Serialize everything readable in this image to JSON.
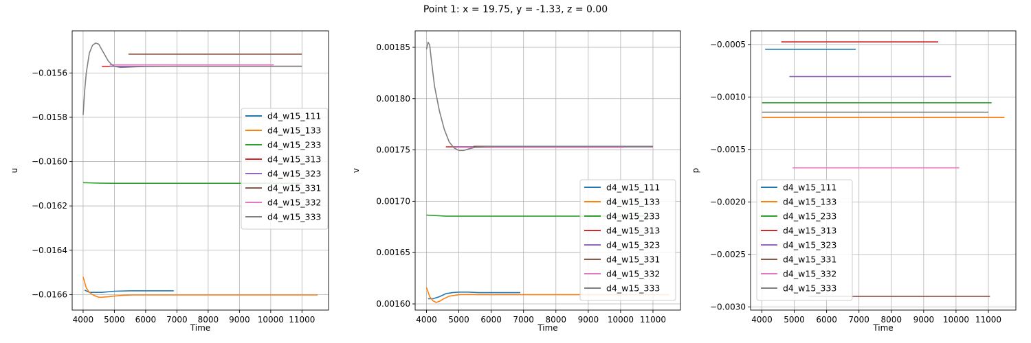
{
  "suptitle": "Point 1: x = 19.75, y = -1.33, z = 0.00",
  "colors": {
    "d4_w15_111": "#1f77b4",
    "d4_w15_133": "#ff7f0e",
    "d4_w15_233": "#2ca02c",
    "d4_w15_313": "#d62728",
    "d4_w15_323": "#9467bd",
    "d4_w15_331": "#8c564b",
    "d4_w15_332": "#e377c2",
    "d4_w15_333": "#7f7f7f"
  },
  "chart_data": [
    {
      "type": "line",
      "xlabel": "Time",
      "ylabel": "u",
      "xlim": [
        3650,
        11850
      ],
      "ylim": [
        -0.01667,
        -0.01541
      ],
      "xticks": [
        4000,
        5000,
        6000,
        7000,
        8000,
        9000,
        10000,
        11000
      ],
      "xtick_labels": [
        "4000",
        "5000",
        "6000",
        "7000",
        "8000",
        "9000",
        "10000",
        "11000"
      ],
      "yticks": [
        -0.0166,
        -0.0164,
        -0.0162,
        -0.016,
        -0.0158,
        -0.0156
      ],
      "ytick_labels": [
        "−0.0166",
        "−0.0164",
        "−0.0162",
        "−0.0160",
        "−0.0158",
        "−0.0156"
      ],
      "grid": true,
      "legend": "center-right",
      "series": [
        {
          "name": "d4_w15_111",
          "x": [
            4050,
            4200,
            4400,
            4600,
            5000,
            5500,
            6000,
            6900
          ],
          "y": [
            -0.01658,
            -0.01659,
            -0.01659,
            -0.01659,
            -0.016585,
            -0.016583,
            -0.016583,
            -0.016583
          ]
        },
        {
          "name": "d4_w15_133",
          "x": [
            4000,
            4100,
            4200,
            4300,
            4400,
            4500,
            4600,
            4800,
            5000,
            5300,
            5600,
            6000,
            7000,
            11500
          ],
          "y": [
            -0.01652,
            -0.01657,
            -0.01659,
            -0.0166,
            -0.016607,
            -0.016612,
            -0.016612,
            -0.01661,
            -0.016607,
            -0.016603,
            -0.016602,
            -0.016602,
            -0.016602,
            -0.016602
          ]
        },
        {
          "name": "d4_w15_233",
          "x": [
            4000,
            4500,
            5000,
            6000,
            11000
          ],
          "y": [
            -0.016095,
            -0.016097,
            -0.016098,
            -0.016098,
            -0.016098
          ]
        },
        {
          "name": "d4_w15_313",
          "x": [
            4600,
            11000
          ],
          "y": [
            -0.01557,
            -0.01557
          ]
        },
        {
          "name": "d4_w15_323",
          "x": [
            4850,
            11000
          ],
          "y": [
            -0.01557,
            -0.01557
          ]
        },
        {
          "name": "d4_w15_331",
          "x": [
            5450,
            11000
          ],
          "y": [
            -0.015515,
            -0.015515
          ]
        },
        {
          "name": "d4_w15_332",
          "x": [
            4850,
            10100
          ],
          "y": [
            -0.015563,
            -0.015563
          ]
        },
        {
          "name": "d4_w15_333",
          "x": [
            4000,
            4050,
            4100,
            4200,
            4300,
            4400,
            4500,
            4600,
            4700,
            4800,
            4900,
            5000,
            5200,
            5400,
            5700,
            6000,
            7000,
            11000
          ],
          "y": [
            -0.01579,
            -0.01568,
            -0.0156,
            -0.01551,
            -0.015475,
            -0.015465,
            -0.01547,
            -0.015495,
            -0.01552,
            -0.015545,
            -0.01556,
            -0.01557,
            -0.015575,
            -0.015574,
            -0.015572,
            -0.015571,
            -0.01557,
            -0.01557
          ]
        }
      ]
    },
    {
      "type": "line",
      "xlabel": "Time",
      "ylabel": "v",
      "xlim": [
        3650,
        11850
      ],
      "ylim": [
        0.001594,
        0.001866
      ],
      "xticks": [
        4000,
        5000,
        6000,
        7000,
        8000,
        9000,
        10000,
        11000
      ],
      "xtick_labels": [
        "4000",
        "5000",
        "6000",
        "7000",
        "8000",
        "9000",
        "10000",
        "11000"
      ],
      "yticks": [
        0.0016,
        0.00165,
        0.0017,
        0.00175,
        0.0018,
        0.00185
      ],
      "ytick_labels": [
        "0.00160",
        "0.00165",
        "0.00170",
        "0.00175",
        "0.00180",
        "0.00185"
      ],
      "grid": true,
      "legend": "lower-right",
      "series": [
        {
          "name": "d4_w15_111",
          "x": [
            4050,
            4200,
            4400,
            4600,
            4800,
            5000,
            5300,
            5600,
            6000,
            6900
          ],
          "y": [
            0.001605,
            0.001605,
            0.001607,
            0.00161,
            0.001611,
            0.0016115,
            0.0016115,
            0.001611,
            0.001611,
            0.001611
          ]
        },
        {
          "name": "d4_w15_133",
          "x": [
            4000,
            4100,
            4200,
            4300,
            4400,
            4500,
            4700,
            5000,
            5300,
            5600,
            6000,
            7000,
            11500
          ],
          "y": [
            0.001616,
            0.001607,
            0.001603,
            0.0016015,
            0.0016025,
            0.0016045,
            0.0016075,
            0.001609,
            0.0016092,
            0.001609,
            0.001609,
            0.001609,
            0.001609
          ]
        },
        {
          "name": "d4_w15_233",
          "x": [
            4000,
            4300,
            4600,
            5000,
            6000,
            11000
          ],
          "y": [
            0.0016865,
            0.001686,
            0.0016855,
            0.0016855,
            0.0016855,
            0.0016855
          ]
        },
        {
          "name": "d4_w15_313",
          "x": [
            4600,
            11000
          ],
          "y": [
            0.001753,
            0.001753
          ]
        },
        {
          "name": "d4_w15_323",
          "x": [
            4850,
            11000
          ],
          "y": [
            0.001753,
            0.001753
          ]
        },
        {
          "name": "d4_w15_331",
          "x": [
            5450,
            11000
          ],
          "y": [
            0.0017535,
            0.0017535
          ]
        },
        {
          "name": "d4_w15_332",
          "x": [
            4850,
            10100
          ],
          "y": [
            0.0017525,
            0.0017525
          ]
        },
        {
          "name": "d4_w15_333",
          "x": [
            4000,
            4050,
            4100,
            4150,
            4250,
            4400,
            4550,
            4700,
            4850,
            5000,
            5150,
            5300,
            5500,
            5800,
            6200,
            7000,
            11000
          ],
          "y": [
            0.001848,
            0.001855,
            0.001852,
            0.001838,
            0.001812,
            0.001788,
            0.00177,
            0.001758,
            0.001752,
            0.0017495,
            0.0017495,
            0.001751,
            0.0017525,
            0.0017532,
            0.0017535,
            0.0017535,
            0.0017535
          ]
        }
      ]
    },
    {
      "type": "line",
      "xlabel": "Time",
      "ylabel": "p",
      "xlim": [
        3650,
        11850
      ],
      "ylim": [
        -0.00303,
        -0.00037
      ],
      "xticks": [
        4000,
        5000,
        6000,
        7000,
        8000,
        9000,
        10000,
        11000
      ],
      "xtick_labels": [
        "4000",
        "5000",
        "6000",
        "7000",
        "8000",
        "9000",
        "10000",
        "11000"
      ],
      "yticks": [
        -0.003,
        -0.0025,
        -0.002,
        -0.0015,
        -0.001,
        -0.0005
      ],
      "ytick_labels": [
        "−0.0030",
        "−0.0025",
        "−0.0020",
        "−0.0015",
        "−0.0010",
        "−0.0005"
      ],
      "grid": true,
      "legend": "lower-left",
      "series": [
        {
          "name": "d4_w15_111",
          "x": [
            4100,
            6900
          ],
          "y": [
            -0.000545,
            -0.000545
          ]
        },
        {
          "name": "d4_w15_133",
          "x": [
            4000,
            11500
          ],
          "y": [
            -0.001195,
            -0.001195
          ]
        },
        {
          "name": "d4_w15_233",
          "x": [
            4000,
            11100
          ],
          "y": [
            -0.001055,
            -0.001055
          ]
        },
        {
          "name": "d4_w15_313",
          "x": [
            4600,
            9450
          ],
          "y": [
            -0.000475,
            -0.000475
          ]
        },
        {
          "name": "d4_w15_323",
          "x": [
            4850,
            9850
          ],
          "y": [
            -0.000805,
            -0.000805
          ]
        },
        {
          "name": "d4_w15_331",
          "x": [
            5450,
            11050
          ],
          "y": [
            -0.0029,
            -0.0029
          ]
        },
        {
          "name": "d4_w15_332",
          "x": [
            4950,
            10100
          ],
          "y": [
            -0.001675,
            -0.001675
          ]
        },
        {
          "name": "d4_w15_333",
          "x": [
            4000,
            11000
          ],
          "y": [
            -0.001145,
            -0.001145
          ]
        }
      ]
    }
  ]
}
